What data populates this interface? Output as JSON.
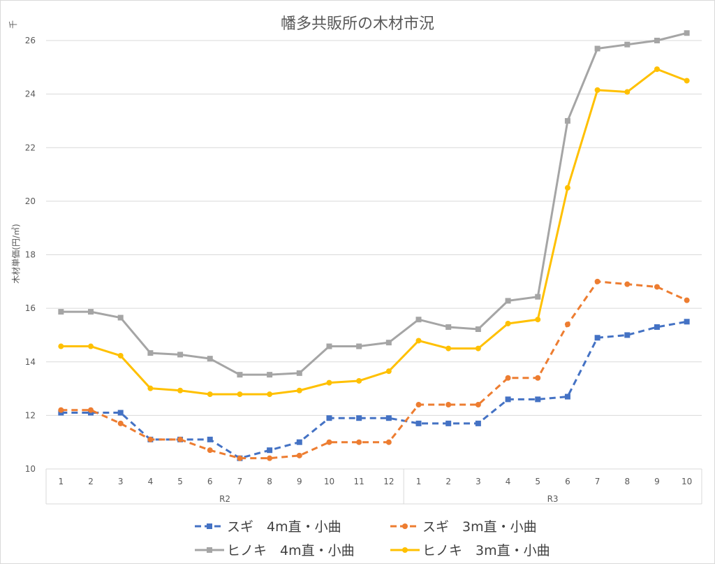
{
  "chart_data": {
    "type": "line",
    "title": "幡多共販所の木材市況",
    "ylabel": "木材単価(円/㎥)",
    "yunit": "千",
    "ylim": [
      10,
      26
    ],
    "yticks": [
      "10",
      "12",
      "14",
      "16",
      "18",
      "20",
      "22",
      "24",
      "26"
    ],
    "grid": true,
    "legend_position": "bottom",
    "categories": [
      "1",
      "2",
      "3",
      "4",
      "5",
      "6",
      "7",
      "8",
      "9",
      "10",
      "11",
      "12",
      "1",
      "2",
      "3",
      "4",
      "5",
      "6",
      "7",
      "8",
      "9",
      "10"
    ],
    "groups": [
      {
        "label": "R2",
        "count": 12
      },
      {
        "label": "R3",
        "count": 10
      }
    ],
    "series": [
      {
        "name": "スギ　4m直・小曲",
        "color": "#4472c4",
        "dashed": true,
        "marker": "square",
        "values": [
          12.1,
          12.1,
          12.1,
          11.1,
          11.1,
          11.1,
          10.4,
          10.7,
          11.0,
          11.9,
          11.9,
          11.9,
          11.7,
          11.7,
          11.7,
          12.6,
          12.6,
          12.7,
          14.9,
          15.0,
          15.3,
          15.5
        ]
      },
      {
        "name": "スギ　3m直・小曲",
        "color": "#ed7d31",
        "dashed": true,
        "marker": "circle",
        "values": [
          12.2,
          12.2,
          11.7,
          11.1,
          11.1,
          10.7,
          10.4,
          10.4,
          10.5,
          11.0,
          11.0,
          11.0,
          12.4,
          12.4,
          12.4,
          13.4,
          13.4,
          15.4,
          17.0,
          16.9,
          16.8,
          16.3
        ]
      },
      {
        "name": "ヒノキ　4m直・小曲",
        "color": "#a5a5a5",
        "dashed": false,
        "marker": "square",
        "values": [
          15.87,
          15.87,
          15.65,
          14.33,
          14.27,
          14.12,
          13.52,
          13.52,
          13.58,
          14.58,
          14.58,
          14.72,
          15.58,
          15.3,
          15.22,
          16.28,
          16.43,
          23.0,
          25.7,
          25.85,
          26.0,
          26.28
        ]
      },
      {
        "name": "ヒノキ　3m直・小曲",
        "color": "#ffc000",
        "dashed": false,
        "marker": "circle",
        "values": [
          14.58,
          14.58,
          14.23,
          13.01,
          12.93,
          12.79,
          12.79,
          12.79,
          12.93,
          13.22,
          13.29,
          13.65,
          14.79,
          14.5,
          14.5,
          15.43,
          15.58,
          20.5,
          24.15,
          24.08,
          24.93,
          24.5
        ]
      }
    ]
  }
}
